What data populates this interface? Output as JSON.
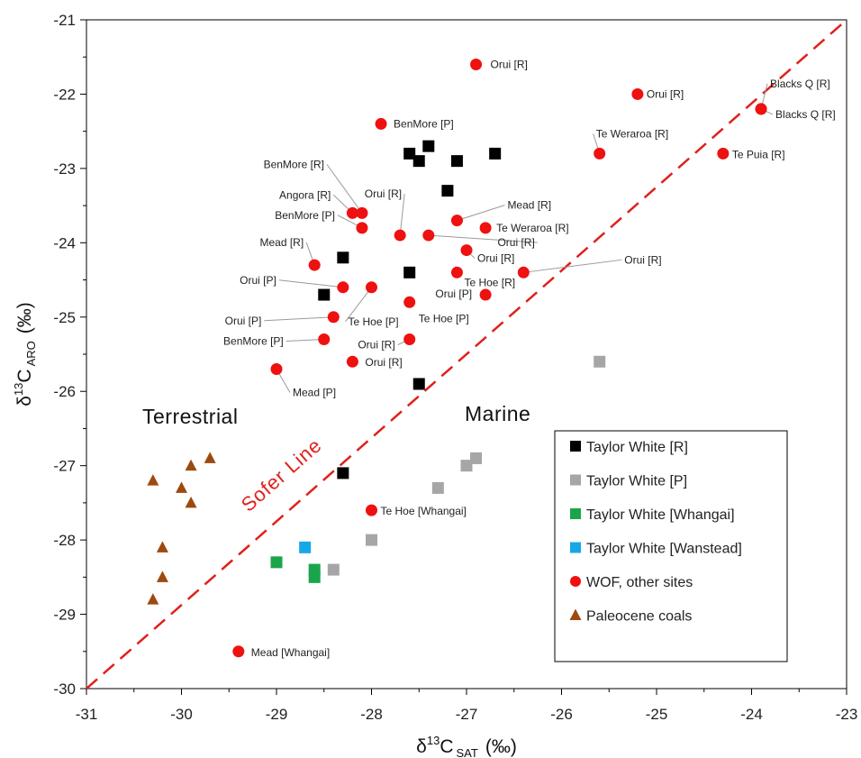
{
  "chart_data": {
    "type": "scatter",
    "title": "",
    "xlabel": {
      "main": "δ",
      "sup": "13",
      "letter": "C",
      "sub": "SAT",
      "unit": "(‰)"
    },
    "ylabel": {
      "main": "δ",
      "sup": "13",
      "letter": "C",
      "sub": "ARO",
      "unit": "(‰)"
    },
    "xlim": [
      -31,
      -23
    ],
    "ylim": [
      -30,
      -21
    ],
    "xticks": [
      -31,
      -30,
      -29,
      -28,
      -27,
      -26,
      -25,
      -24,
      -23
    ],
    "yticks": [
      -30,
      -29,
      -28,
      -27,
      -26,
      -25,
      -24,
      -23,
      -22,
      -21
    ],
    "grid": false,
    "legend_position": "bottom-right",
    "region_labels": {
      "terrestrial": "Terrestrial",
      "marine": "Marine"
    },
    "reference_line": {
      "name": "Sofer Line",
      "from": [
        -31,
        -30
      ],
      "to": [
        -23,
        -21
      ],
      "color": "#e0201c",
      "style": "dashed"
    },
    "series": [
      {
        "name": "Taylor White [R]",
        "marker": "square",
        "color": "#000000",
        "points": [
          {
            "x": -27.6,
            "y": -22.8
          },
          {
            "x": -27.4,
            "y": -22.7
          },
          {
            "x": -27.5,
            "y": -22.9
          },
          {
            "x": -27.1,
            "y": -22.9
          },
          {
            "x": -26.7,
            "y": -22.8
          },
          {
            "x": -27.2,
            "y": -23.3
          },
          {
            "x": -28.3,
            "y": -24.2
          },
          {
            "x": -27.6,
            "y": -24.4
          },
          {
            "x": -28.5,
            "y": -24.7
          },
          {
            "x": -27.5,
            "y": -25.9
          },
          {
            "x": -28.3,
            "y": -27.1
          }
        ]
      },
      {
        "name": "Taylor White [P]",
        "marker": "square",
        "color": "#a6a6a6",
        "points": [
          {
            "x": -25.6,
            "y": -25.6
          },
          {
            "x": -26.9,
            "y": -26.9
          },
          {
            "x": -27.0,
            "y": -27.0
          },
          {
            "x": -27.3,
            "y": -27.3
          },
          {
            "x": -28.0,
            "y": -28.0
          },
          {
            "x": -28.4,
            "y": -28.4
          }
        ]
      },
      {
        "name": "Taylor White [Whangai]",
        "marker": "square",
        "color": "#1aa54b",
        "points": [
          {
            "x": -29.0,
            "y": -28.3
          },
          {
            "x": -28.6,
            "y": -28.4
          },
          {
            "x": -28.6,
            "y": -28.5
          }
        ]
      },
      {
        "name": "Taylor White [Wanstead]",
        "marker": "square",
        "color": "#16a8e6",
        "points": [
          {
            "x": -28.7,
            "y": -28.1
          }
        ]
      },
      {
        "name": "WOF, other sites",
        "marker": "circle",
        "color": "#ef1010",
        "points": [
          {
            "x": -26.9,
            "y": -21.6,
            "label": "Orui [R]"
          },
          {
            "x": -25.2,
            "y": -22.0,
            "label": "Orui [R]"
          },
          {
            "x": -23.9,
            "y": -22.2,
            "label": "Blacks Q [R]"
          },
          {
            "x": -23.9,
            "y": -22.2,
            "label": "Blacks Q [R]"
          },
          {
            "x": -27.9,
            "y": -22.4,
            "label": "BenMore [P]"
          },
          {
            "x": -25.6,
            "y": -22.8,
            "label": "Te Weraroa [R]"
          },
          {
            "x": -24.3,
            "y": -22.8,
            "label": "Te Puia [R]"
          },
          {
            "x": -28.1,
            "y": -23.6,
            "label": "BenMore [R]"
          },
          {
            "x": -28.2,
            "y": -23.6,
            "label": "Angora [R]"
          },
          {
            "x": -27.1,
            "y": -23.7,
            "label": "Mead [R]"
          },
          {
            "x": -28.1,
            "y": -23.8,
            "label": "BenMore [P]"
          },
          {
            "x": -27.7,
            "y": -23.9,
            "label": "Orui [R]"
          },
          {
            "x": -26.8,
            "y": -23.8,
            "label": "Te Weraroa [R]"
          },
          {
            "x": -27.4,
            "y": -23.9,
            "label": "Orui [R]"
          },
          {
            "x": -28.6,
            "y": -24.3,
            "label": "Mead [R]"
          },
          {
            "x": -27.0,
            "y": -24.1,
            "label": "Orui [R]"
          },
          {
            "x": -26.4,
            "y": -24.4,
            "label": "Orui [R]"
          },
          {
            "x": -27.1,
            "y": -24.4,
            "label": "Te Hoe [R]"
          },
          {
            "x": -28.3,
            "y": -24.6,
            "label": "Orui [P]"
          },
          {
            "x": -28.0,
            "y": -24.6,
            "label": "Te Hoe [P]"
          },
          {
            "x": -26.8,
            "y": -24.7,
            "label": "Orui [P]"
          },
          {
            "x": -27.6,
            "y": -24.8,
            "label": "Te Hoe [P]"
          },
          {
            "x": -28.4,
            "y": -25.0,
            "label": "Orui [P]"
          },
          {
            "x": -28.5,
            "y": -25.3,
            "label": "BenMore [P]"
          },
          {
            "x": -27.6,
            "y": -25.3,
            "label": "Orui [R]"
          },
          {
            "x": -28.2,
            "y": -25.6,
            "label": "Orui [R]"
          },
          {
            "x": -29.0,
            "y": -25.7,
            "label": "Mead [P]"
          },
          {
            "x": -28.0,
            "y": -27.6,
            "label": "Te Hoe [Whangai]"
          },
          {
            "x": -29.4,
            "y": -29.5,
            "label": "Mead [Whangai]"
          }
        ]
      },
      {
        "name": "Paleocene coals",
        "marker": "triangle",
        "color": "#9c4a0f",
        "points": [
          {
            "x": -29.7,
            "y": -26.9
          },
          {
            "x": -29.9,
            "y": -27.0
          },
          {
            "x": -30.3,
            "y": -27.2
          },
          {
            "x": -30.0,
            "y": -27.3
          },
          {
            "x": -29.9,
            "y": -27.5
          },
          {
            "x": -30.2,
            "y": -28.1
          },
          {
            "x": -30.2,
            "y": -28.5
          },
          {
            "x": -30.3,
            "y": -28.8
          }
        ]
      }
    ]
  }
}
